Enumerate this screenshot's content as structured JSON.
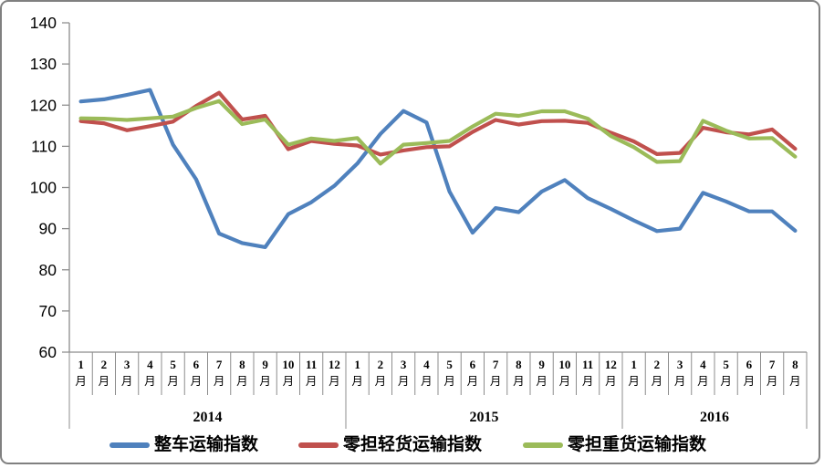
{
  "frame": {
    "background": "#FFFFFF",
    "border_color": "#808080",
    "axis_color": "#8C8C8C",
    "text_color": "#000000"
  },
  "chart_data": {
    "type": "line",
    "title": "",
    "xlabel": "",
    "ylabel": "",
    "ylim": [
      60,
      140
    ],
    "ytick_step": 10,
    "yticks": [
      60,
      70,
      80,
      90,
      100,
      110,
      120,
      130,
      140
    ],
    "grid": false,
    "legend_position": "bottom",
    "month_suffix": "月",
    "years": [
      {
        "label": "2014",
        "count": 12
      },
      {
        "label": "2015",
        "count": 12
      },
      {
        "label": "2016",
        "count": 8
      }
    ],
    "month_numbers": [
      "1",
      "2",
      "3",
      "4",
      "5",
      "6",
      "7",
      "8",
      "9",
      "10",
      "11",
      "12",
      "1",
      "2",
      "3",
      "4",
      "5",
      "6",
      "7",
      "8",
      "9",
      "10",
      "11",
      "12",
      "1",
      "2",
      "3",
      "4",
      "5",
      "6",
      "7",
      "8"
    ],
    "series": [
      {
        "name": "整车运输指数",
        "color": "#4F81BD",
        "values": [
          120.9,
          121.4,
          122.5,
          123.7,
          110.4,
          102,
          88.8,
          86.5,
          85.5,
          93.5,
          96.4,
          100.4,
          105.8,
          113,
          118.6,
          115.8,
          99,
          89,
          95,
          94,
          99,
          101.8,
          97.4,
          94.8,
          92,
          89.4,
          90,
          98.7,
          96.6,
          94.2,
          94.2,
          89.5
        ]
      },
      {
        "name": "零担轻货运输指数",
        "color": "#C0504D",
        "values": [
          116.1,
          115.6,
          113.9,
          114.9,
          116,
          119.8,
          123,
          116.5,
          117.4,
          109.3,
          111.3,
          110.6,
          110.2,
          108,
          109,
          109.8,
          110,
          113.5,
          116.4,
          115.3,
          116.1,
          116.2,
          115.7,
          113.3,
          111.2,
          108.1,
          108.4,
          114.5,
          113.4,
          112.9,
          114.1,
          109.4
        ]
      },
      {
        "name": "零担重货运输指数",
        "color": "#9BBB59",
        "values": [
          116.8,
          116.7,
          116.4,
          116.8,
          117.2,
          119.3,
          121,
          115.4,
          116.5,
          110.4,
          111.9,
          111.3,
          112,
          105.8,
          110.4,
          110.8,
          111.3,
          114.8,
          117.9,
          117.4,
          118.5,
          118.5,
          116.7,
          112.5,
          109.8,
          106.2,
          106.4,
          116.2,
          113.8,
          111.9,
          112,
          107.5
        ]
      }
    ]
  }
}
